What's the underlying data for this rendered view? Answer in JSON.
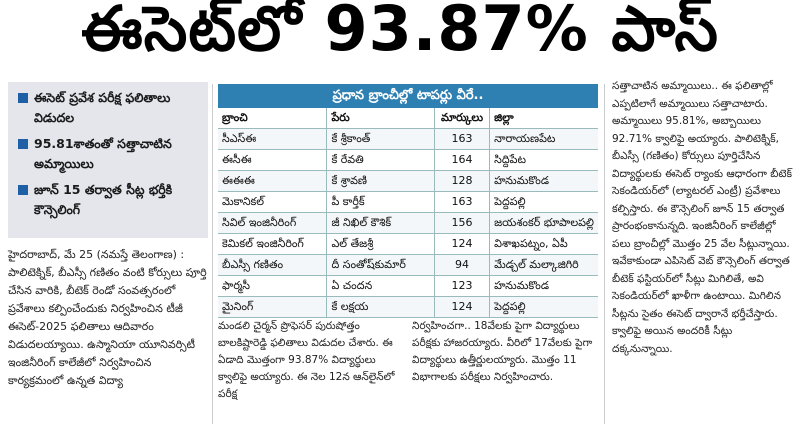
{
  "headline": "ఈసెట్‌లో 93.87% పాస్",
  "highlights": [
    "ఈసెట్ ప్రవేశ పరీక్ష ఫలితాలు విడుదల",
    "95.81శాతంతో సత్తాచాటిన అమ్మాయిలు",
    "జూన్ 15 తర్వాత సీట్ల భర్తీకి కౌన్సెలింగ్"
  ],
  "col1_text": "హైదరాబాద్, మే 25 (నమస్తే తెలంగాణ) : పాలిటెక్నిక్, బీఎస్సీ గణితం వంటి కోర్సులు పూర్తి చేసిన వారికి, బీటెక్ రెండో సంవత్సరంలో ప్రవేశాలు కల్పించేందుకు నిర్వహించిన టీజీ ఈసెట్-2025 ఫలితాలు ఆదివారం విడుదలయ్యాయి. ఉస్మానియా యూనివర్సిటీ ఇంజినీరింగ్ కాలేజీలో నిర్వహించిన కార్యక్రమంలో ఉన్నత విద్యా",
  "table": {
    "title": "ప్రధాన బ్రాంచీల్లో టాపర్లు వీరే..",
    "headers": [
      "బ్రాంచి",
      "పేరు",
      "మార్కులు",
      "జిల్లా"
    ],
    "rows": [
      [
        "సీఎస్ఈ",
        "కే శ్రీకాంత్",
        "163",
        "నారాయణపేట"
      ],
      [
        "ఈసీఈ",
        "కే రేవతి",
        "164",
        "సిద్దిపేట"
      ],
      [
        "ఈఈఈ",
        "కే శ్రావణి",
        "128",
        "హనుమకొండ"
      ],
      [
        "మెకానికల్",
        "పీ కార్తీక్",
        "163",
        "పెద్దపల్లి"
      ],
      [
        "సివిల్ ఇంజినీరింగ్",
        "జీ నిఖిల్ కౌశిక్",
        "156",
        "జయశంకర్ భూపాలపల్లి"
      ],
      [
        "కెమికల్ ఇంజినీరింగ్",
        "ఎల్ తేజశ్రీ",
        "124",
        "విశాఖపట్నం, ఏపీ"
      ],
      [
        "బీఎస్సీ గణితం",
        "దీ సంతోష్‌కుమార్",
        "94",
        "మేడ్చల్ మల్కాజిగిరి"
      ],
      [
        "ఫార్మసీ",
        "ఏ చందన",
        "123",
        "హనుమకొండ"
      ],
      [
        "మైనింగ్",
        "కే లక్షయ",
        "124",
        "పెద్దపల్లి"
      ]
    ]
  },
  "col2_text": "మండలి చైర్మన్ ప్రొఫెసర్ పురుషోత్తం బాలకిష్టారెడ్డి ఫలితాలు విడుదల చేశారు. ఈ ఏడాది మొత్తంగా 93.87% విద్యార్థులు క్వాలిఫై అయ్యారు. ఈ నెల 12న ఆన్‌లైన్‌లో పరీక్ష",
  "col3_text": "నిర్వహించగా.. 18వేలకు పైగా విద్యార్థులు పరీక్షకు హాజరయ్యారు. వీరిలో 17వేలకు పైగా విద్యార్థులు ఉత్తీర్ణులయ్యారు. మొత్తం 11 విభాగాలకు పరీక్షలు నిర్వహించారు.",
  "col4_text": "సత్తాచాటిన అమ్మాయిలు.. ఈ ఫలితాల్లో ఎప్పటిలాగే అమ్మాయిలు సత్తాచాటారు. అమ్మాయిలు 95.81%, అబ్బాయిలు 92.71% క్వాలిఫై అయ్యారు. పాలిటెక్నిక్, బీఎస్సీ (గణితం) కోర్సులు పూర్తిచేసిన విద్యార్థులకు ఈసెట్ ర్యాంకు ఆధారంగా బీటెక్ సెకండియర్‌లో (ల్యాటరల్ ఎంట్రీ) ప్రవేశాలు కల్పిస్తారు. ఈ కౌన్సెలింగ్ జూన్ 15 తర్వాత ప్రారంభంకానున్నది. ఇంజినీరింగ్ కాలేజీల్లో పలు బ్రాంచీల్లో మొత్తం 25 వేల సీట్లున్నాయి. ఇవేకాకుండా ఎపిసెట్ వెబ్ కౌన్సెలింగ్ తర్వాత బీటెక్ ఫస్టియర్‌లో సీట్లు మిగిలితే, అవి సెకండియర్‌లో ఖాళీగా ఉంటాయి. మిగిలిన సీట్లను సైతం ఈసెట్ ద్వారానే భర్తీచేస్తారు. క్వాలిఫై అయిన అందరికీ సీట్లు దక్కనున్నాయి."
}
